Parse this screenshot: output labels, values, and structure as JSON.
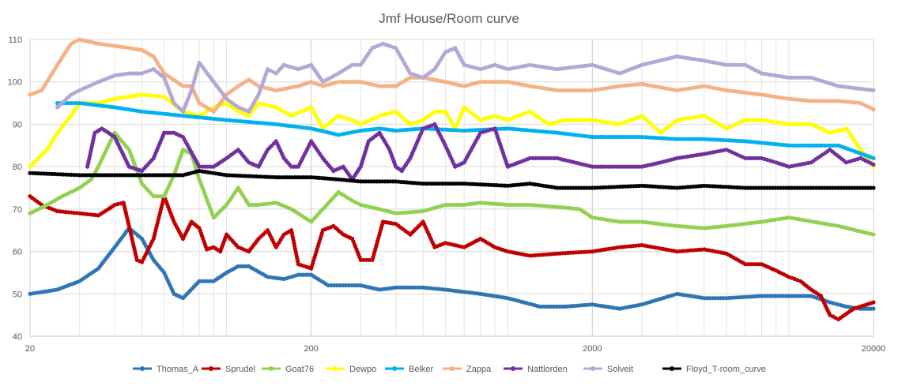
{
  "chart_data": {
    "type": "line",
    "title": "Jmf House/Room curve",
    "xscale": "log",
    "xlim": [
      20,
      20000
    ],
    "ylim": [
      40,
      110
    ],
    "x_ticks": [
      20,
      200,
      2000,
      20000
    ],
    "y_ticks": [
      40,
      50,
      60,
      70,
      80,
      90,
      100,
      110
    ],
    "grid": true,
    "legend_position": "bottom",
    "series": [
      {
        "name": "Thomas_A",
        "color": "#2E75B6",
        "marker": true,
        "x": [
          20,
          25,
          30,
          35,
          40,
          45,
          50,
          55,
          60,
          65,
          70,
          80,
          90,
          100,
          110,
          120,
          140,
          160,
          180,
          200,
          230,
          260,
          300,
          350,
          400,
          500,
          600,
          800,
          1000,
          1300,
          1600,
          2000,
          2500,
          3000,
          4000,
          5000,
          6000,
          8000,
          10000,
          12000,
          14000,
          16000,
          18000,
          20000
        ],
        "y": [
          50,
          51,
          53,
          56,
          61,
          65.5,
          63,
          58,
          55,
          50,
          49,
          53,
          53,
          55,
          56.5,
          56.5,
          54,
          53.5,
          54.5,
          54.5,
          52,
          52,
          52,
          51,
          51.5,
          51.5,
          51,
          50,
          49,
          47,
          47,
          47.5,
          46.5,
          47.5,
          50,
          49,
          49,
          49.5,
          49.5,
          49.5,
          48,
          47,
          46.5,
          46.5
        ]
      },
      {
        "name": "Sprudel",
        "color": "#C00000",
        "marker": true,
        "x": [
          20,
          22,
          25,
          30,
          35,
          38,
          40,
          43,
          45,
          48,
          50,
          55,
          60,
          65,
          70,
          75,
          80,
          85,
          90,
          95,
          100,
          110,
          120,
          130,
          140,
          150,
          160,
          170,
          180,
          200,
          220,
          240,
          260,
          280,
          300,
          330,
          360,
          400,
          450,
          500,
          550,
          600,
          700,
          800,
          900,
          1000,
          1200,
          1500,
          2000,
          2500,
          3000,
          4000,
          5000,
          6000,
          7000,
          8000,
          9000,
          10000,
          11000,
          12000,
          13000,
          14000,
          15000,
          17000,
          20000
        ],
        "y": [
          73,
          71,
          69.5,
          69,
          68.5,
          70,
          71,
          71.5,
          66,
          58,
          57.5,
          63,
          73,
          67,
          63,
          67,
          65.5,
          60.5,
          61,
          60,
          64,
          61,
          60,
          63,
          65,
          61,
          64,
          65,
          57,
          56,
          65,
          66,
          64,
          63,
          58,
          58,
          67,
          66.5,
          64,
          67,
          61,
          62,
          61,
          63,
          61,
          60,
          59,
          59.5,
          60,
          61,
          61.5,
          60,
          60.5,
          59.5,
          57,
          57,
          55.5,
          54,
          53,
          51,
          49.5,
          45,
          44,
          46.5,
          48
        ]
      },
      {
        "name": "Goat76",
        "color": "#92D050",
        "marker": true,
        "x": [
          20,
          23,
          26,
          30,
          33,
          35,
          38,
          40,
          45,
          50,
          55,
          60,
          65,
          70,
          75,
          80,
          90,
          100,
          110,
          120,
          130,
          150,
          170,
          200,
          220,
          250,
          280,
          300,
          350,
          400,
          500,
          600,
          700,
          800,
          1000,
          1200,
          1500,
          1800,
          2000,
          2500,
          3000,
          4000,
          5000,
          6000,
          8000,
          10000,
          15000,
          20000
        ],
        "y": [
          69,
          71,
          73,
          75,
          77,
          80,
          85,
          88,
          84,
          76,
          73,
          73,
          78,
          84,
          83,
          77,
          68,
          71,
          75,
          71,
          71,
          71.5,
          70,
          67,
          70,
          74,
          72,
          71,
          70,
          69,
          69.5,
          71,
          71,
          71.5,
          71,
          71,
          70.5,
          70,
          68,
          67,
          67,
          66,
          65.5,
          66,
          67,
          68,
          66,
          64
        ]
      },
      {
        "name": "Dewpo",
        "color": "#FFFF00",
        "marker": true,
        "x": [
          20,
          23,
          25,
          28,
          30,
          35,
          40,
          50,
          60,
          70,
          80,
          90,
          100,
          110,
          120,
          130,
          150,
          170,
          200,
          220,
          250,
          280,
          300,
          350,
          400,
          450,
          500,
          550,
          600,
          650,
          700,
          800,
          900,
          1000,
          1200,
          1400,
          1600,
          2000,
          2500,
          3000,
          3500,
          4000,
          5000,
          6000,
          7000,
          8000,
          10000,
          12000,
          14000,
          16000,
          18000,
          20000
        ],
        "y": [
          80,
          84,
          88,
          92,
          95,
          95,
          96,
          97,
          96.5,
          93,
          92,
          94,
          95,
          93,
          92,
          95,
          94,
          92,
          94,
          89,
          92,
          91,
          90,
          92,
          93,
          90,
          91,
          93,
          93,
          89,
          94,
          91,
          92,
          91,
          93,
          90,
          91,
          91,
          90,
          92,
          88,
          91,
          92,
          89,
          91,
          91,
          90,
          90,
          88,
          89,
          84,
          80
        ]
      },
      {
        "name": "Belker",
        "color": "#00B0F0",
        "marker": true,
        "x": [
          25,
          30,
          40,
          50,
          70,
          100,
          150,
          200,
          250,
          300,
          350,
          400,
          500,
          700,
          1000,
          1500,
          2000,
          3000,
          4000,
          5000,
          7000,
          10000,
          15000,
          20000
        ],
        "y": [
          95,
          95,
          94,
          93,
          92,
          91,
          90,
          89,
          87.5,
          88.5,
          89,
          88.5,
          89,
          88.5,
          89,
          88,
          87,
          87,
          86.5,
          86.5,
          86,
          85,
          85,
          82
        ]
      },
      {
        "name": "Zappa",
        "color": "#F4B183",
        "marker": true,
        "x": [
          20,
          22,
          25,
          28,
          30,
          35,
          40,
          45,
          50,
          55,
          60,
          70,
          75,
          80,
          90,
          100,
          110,
          120,
          130,
          150,
          180,
          200,
          220,
          250,
          300,
          350,
          400,
          450,
          500,
          600,
          700,
          800,
          1000,
          1200,
          1500,
          2000,
          2500,
          3000,
          4000,
          5000,
          6000,
          8000,
          10000,
          12000,
          15000,
          18000,
          20000
        ],
        "y": [
          97,
          98,
          104,
          109,
          110,
          109,
          108.5,
          108,
          107.5,
          106,
          102,
          99,
          99,
          95,
          93,
          97,
          99,
          100.5,
          99,
          98,
          99,
          100,
          99,
          100,
          100,
          99,
          99,
          101,
          101,
          100,
          99,
          100,
          100,
          99,
          98,
          98,
          99,
          99.5,
          98,
          99,
          98,
          97,
          96,
          95.5,
          95.5,
          95,
          93.5
        ]
      },
      {
        "name": "Nattlorden",
        "color": "#7030A0",
        "marker": true,
        "x": [
          30,
          32,
          34,
          36,
          38,
          40,
          45,
          50,
          55,
          60,
          65,
          70,
          80,
          90,
          100,
          110,
          120,
          130,
          140,
          150,
          160,
          170,
          180,
          200,
          220,
          240,
          260,
          280,
          300,
          320,
          350,
          380,
          400,
          420,
          450,
          500,
          550,
          600,
          650,
          700,
          800,
          900,
          1000,
          1200,
          1500,
          2000,
          2500,
          3000,
          3500,
          4000,
          5000,
          6000,
          7000,
          8000,
          9000,
          10000,
          12000,
          14000,
          16000,
          18000,
          20000
        ],
        "y": [
          null,
          80,
          88,
          89,
          88,
          87,
          80,
          79,
          82,
          88,
          88,
          87,
          80,
          80,
          82,
          84,
          81,
          80,
          84,
          86,
          82,
          80,
          80,
          86,
          82,
          79,
          80,
          77,
          80,
          86,
          88,
          84,
          80,
          79,
          82,
          89,
          90,
          85,
          80,
          81,
          88,
          89,
          80,
          82,
          82,
          80,
          80,
          80,
          81,
          82,
          83,
          84,
          82,
          82,
          81,
          80,
          81,
          84,
          81,
          82,
          80.5
        ]
      },
      {
        "name": "Solveit",
        "color": "#B4A7D6",
        "marker": true,
        "x": [
          25,
          28,
          30,
          35,
          40,
          45,
          50,
          55,
          60,
          65,
          70,
          75,
          80,
          90,
          100,
          110,
          120,
          130,
          140,
          150,
          160,
          180,
          200,
          220,
          250,
          280,
          300,
          330,
          360,
          400,
          450,
          500,
          550,
          600,
          650,
          700,
          800,
          900,
          1000,
          1200,
          1500,
          2000,
          2500,
          3000,
          4000,
          5000,
          6000,
          7000,
          8000,
          10000,
          12000,
          15000,
          20000
        ],
        "y": [
          94,
          97,
          98,
          100,
          101.5,
          102,
          102,
          103,
          101,
          95,
          93,
          98,
          104.5,
          100,
          96,
          94,
          93,
          97,
          103,
          102,
          104,
          103,
          104,
          100,
          102,
          104,
          104,
          108,
          109,
          108,
          102,
          101,
          103,
          107,
          108,
          104,
          103,
          104,
          103,
          104,
          103,
          104,
          102,
          104,
          106,
          105,
          104,
          104,
          102,
          101,
          101,
          99,
          98
        ]
      },
      {
        "name": "Floyd_T-room_curve",
        "color": "#000000",
        "marker": true,
        "x": [
          20,
          30,
          40,
          50,
          60,
          70,
          80,
          100,
          150,
          200,
          250,
          300,
          400,
          500,
          700,
          1000,
          1200,
          1500,
          2000,
          3000,
          4000,
          5000,
          7000,
          10000,
          15000,
          20000
        ],
        "y": [
          78.5,
          78,
          78,
          78,
          78,
          78,
          79,
          78,
          77.5,
          77.5,
          77,
          76.5,
          76.5,
          76,
          76,
          75.5,
          76,
          75,
          75,
          75.5,
          75,
          75.5,
          75,
          75,
          75,
          75
        ]
      }
    ]
  }
}
